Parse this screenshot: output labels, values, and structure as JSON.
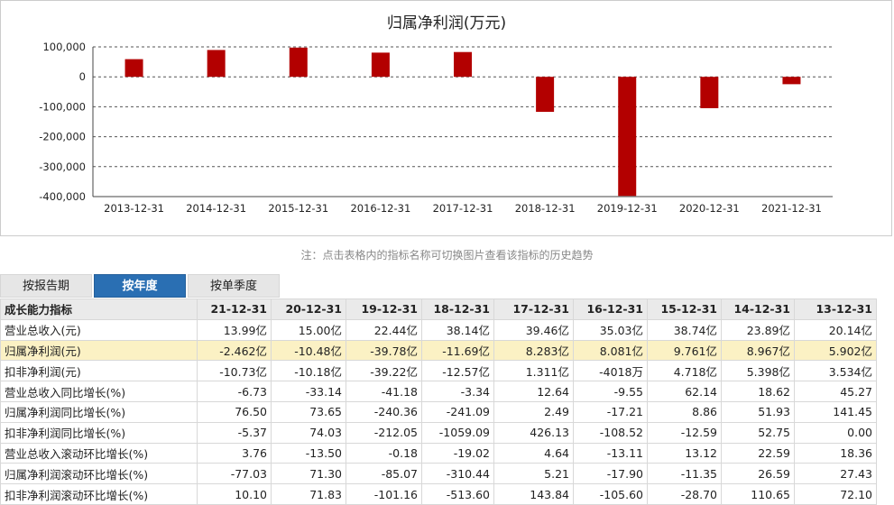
{
  "chart_data": {
    "type": "bar",
    "title": "归属净利润(万元)",
    "categories": [
      "2013-12-31",
      "2014-12-31",
      "2015-12-31",
      "2016-12-31",
      "2017-12-31",
      "2018-12-31",
      "2019-12-31",
      "2020-12-31",
      "2021-12-31"
    ],
    "values": [
      59020,
      89670,
      97610,
      80810,
      82830,
      -116900,
      -397800,
      -104800,
      -24620
    ],
    "ylim": [
      -400000,
      100000
    ],
    "yticks": [
      100000,
      0,
      -100000,
      -200000,
      -300000,
      -400000
    ],
    "ytick_labels": [
      "100,000",
      "0",
      "-100,000",
      "-200,000",
      "-300,000",
      "-400,000"
    ],
    "bar_color": "#b30000",
    "grid": "dashed horizontal",
    "legend": "none"
  },
  "note": "注：点击表格内的指标名称可切换图片查看该指标的历史趋势",
  "tabs": [
    "按报告期",
    "按年度",
    "按单季度"
  ],
  "active_tab": "按年度",
  "table": {
    "header_label": "成长能力指标",
    "columns": [
      "21-12-31",
      "20-12-31",
      "19-12-31",
      "18-12-31",
      "17-12-31",
      "16-12-31",
      "15-12-31",
      "14-12-31",
      "13-12-31"
    ],
    "rows": [
      {
        "label": "营业总收入(元)",
        "values": [
          "13.99亿",
          "15.00亿",
          "22.44亿",
          "38.14亿",
          "39.46亿",
          "35.03亿",
          "38.74亿",
          "23.89亿",
          "20.14亿"
        ]
      },
      {
        "label": "归属净利润(元)",
        "values": [
          "-2.462亿",
          "-10.48亿",
          "-39.78亿",
          "-11.69亿",
          "8.283亿",
          "8.081亿",
          "9.761亿",
          "8.967亿",
          "5.902亿"
        ]
      },
      {
        "label": "扣非净利润(元)",
        "values": [
          "-10.73亿",
          "-10.18亿",
          "-39.22亿",
          "-12.57亿",
          "1.311亿",
          "-4018万",
          "4.718亿",
          "5.398亿",
          "3.534亿"
        ]
      },
      {
        "label": "营业总收入同比增长(%)",
        "values": [
          "-6.73",
          "-33.14",
          "-41.18",
          "-3.34",
          "12.64",
          "-9.55",
          "62.14",
          "18.62",
          "45.27"
        ]
      },
      {
        "label": "归属净利润同比增长(%)",
        "values": [
          "76.50",
          "73.65",
          "-240.36",
          "-241.09",
          "2.49",
          "-17.21",
          "8.86",
          "51.93",
          "141.45"
        ]
      },
      {
        "label": "扣非净利润同比增长(%)",
        "values": [
          "-5.37",
          "74.03",
          "-212.05",
          "-1059.09",
          "426.13",
          "-108.52",
          "-12.59",
          "52.75",
          "0.00"
        ]
      },
      {
        "label": "营业总收入滚动环比增长(%)",
        "values": [
          "3.76",
          "-13.50",
          "-0.18",
          "-19.02",
          "4.64",
          "-13.11",
          "13.12",
          "22.59",
          "18.36"
        ]
      },
      {
        "label": "归属净利润滚动环比增长(%)",
        "values": [
          "-77.03",
          "71.30",
          "-85.07",
          "-310.44",
          "5.21",
          "-17.90",
          "-11.35",
          "26.59",
          "27.43"
        ]
      },
      {
        "label": "扣非净利润滚动环比增长(%)",
        "values": [
          "10.10",
          "71.83",
          "-101.16",
          "-513.60",
          "143.84",
          "-105.60",
          "-28.70",
          "110.65",
          "72.10"
        ]
      }
    ],
    "highlight_row": "归属净利润(元)",
    "highlight_color": "#fbf1c4"
  }
}
